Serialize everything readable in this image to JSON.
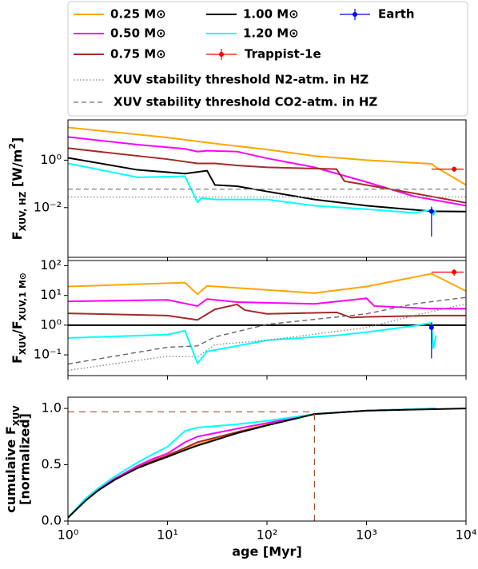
{
  "chart_data": [
    {
      "type": "line",
      "ylog": true,
      "xlog": true,
      "xlim": [
        1,
        10000
      ],
      "ylim": [
        8e-05,
        50
      ],
      "yticks": [
        {
          "value": 1,
          "label": "10⁰"
        },
        {
          "value": 0.01,
          "label": "10⁻²"
        }
      ],
      "y_label": [
        "F",
        "XUV, HZ",
        " [W/m",
        "2",
        "]"
      ],
      "series": [
        {
          "name": "0.25 M⊙",
          "color": "#ffa500",
          "style": "solid",
          "x": [
            1,
            3,
            10,
            30,
            100,
            300,
            1000,
            4500,
            5000,
            10000
          ],
          "values": [
            24,
            15,
            9,
            5,
            2.8,
            1.5,
            1.0,
            0.7,
            0.5,
            0.09
          ]
        },
        {
          "name": "0.50 M⊙",
          "color": "#ff00ff",
          "style": "solid",
          "x": [
            1,
            5,
            15,
            20,
            25,
            50,
            100,
            300,
            1000,
            3000,
            10000
          ],
          "values": [
            9.5,
            4.5,
            3,
            2.3,
            2.5,
            2.3,
            1.2,
            0.5,
            0.12,
            0.03,
            0.012
          ]
        },
        {
          "name": "0.75 M⊙",
          "color": "#a52a2a",
          "style": "solid",
          "x": [
            1,
            10,
            20,
            30,
            50,
            100,
            500,
            600,
            1000,
            3000,
            10000
          ],
          "values": [
            3.2,
            1.1,
            0.73,
            0.73,
            0.6,
            0.5,
            0.42,
            0.13,
            0.09,
            0.04,
            0.016
          ]
        },
        {
          "name": "1.00 M⊙",
          "color": "#000000",
          "style": "solid",
          "x": [
            1,
            5,
            10,
            15,
            25,
            30,
            50,
            100,
            300,
            1000,
            4500,
            10000
          ],
          "values": [
            1.26,
            0.39,
            0.31,
            0.27,
            0.36,
            0.09,
            0.08,
            0.048,
            0.022,
            0.012,
            0.007,
            0.0068
          ]
        },
        {
          "name": "1.20 M⊙",
          "color": "#00ffff",
          "style": "solid",
          "x": [
            1,
            5,
            10,
            15,
            20,
            22,
            30,
            100,
            300,
            1000,
            3000,
            4500,
            4700,
            5000
          ],
          "values": [
            0.73,
            0.19,
            0.2,
            0.21,
            0.017,
            0.025,
            0.022,
            0.022,
            0.012,
            0.0086,
            0.006,
            0.008,
            0.005,
            0.008
          ]
        },
        {
          "name": "XUV stability threshold N2-atm. in HZ",
          "color": "#999999",
          "style": "dotted",
          "x": [
            1,
            10000
          ],
          "values": [
            0.028,
            0.028
          ]
        },
        {
          "name": "XUV stability threshold CO2-atm. in HZ",
          "color": "#888888",
          "style": "dashed",
          "x": [
            1,
            10000
          ],
          "values": [
            0.06,
            0.06
          ]
        }
      ],
      "points": [
        {
          "name": "Trappist-1e",
          "color": "#ff0000",
          "x": 7600,
          "value": 0.42,
          "xerr": [
            3100,
            1900
          ],
          "yerr": [
            0.1,
            0.1
          ]
        },
        {
          "name": "Earth",
          "color": "#0000ff",
          "x": 4500,
          "value": 0.007,
          "xerr": [
            0,
            0
          ],
          "yerr": [
            0.0064,
            0.004
          ]
        }
      ]
    },
    {
      "type": "line",
      "ylog": true,
      "xlog": true,
      "xlim": [
        1,
        10000
      ],
      "ylim": [
        0.02,
        150
      ],
      "yticks": [
        {
          "value": 100,
          "label": "10²"
        },
        {
          "value": 10,
          "label": "10¹"
        },
        {
          "value": 1,
          "label": "10⁰"
        },
        {
          "value": 0.1,
          "label": "10⁻¹"
        }
      ],
      "y_label": [
        "F",
        "XUV",
        "/F",
        "XUV,1 M",
        "⊙"
      ],
      "series": [
        {
          "color": "#ffa500",
          "style": "solid",
          "x": [
            1,
            15,
            20,
            25,
            50,
            300,
            1000,
            4500,
            10000
          ],
          "values": [
            20,
            27,
            11,
            21,
            18,
            12,
            20,
            54,
            14
          ]
        },
        {
          "color": "#ff00ff",
          "style": "solid",
          "x": [
            1,
            10,
            20,
            25,
            50,
            300,
            1000,
            1200,
            4500,
            10000
          ],
          "values": [
            6.3,
            7.1,
            4.4,
            7.6,
            6,
            5.2,
            8,
            4.4,
            3.6,
            3.6
          ]
        },
        {
          "color": "#a52a2a",
          "style": "solid",
          "x": [
            1,
            10,
            20,
            30,
            50,
            60,
            100,
            500,
            700,
            1000,
            4500,
            10000
          ],
          "values": [
            2.5,
            2.1,
            1.5,
            3.4,
            5,
            3.2,
            2.4,
            2.7,
            1.8,
            1.9,
            2.1,
            2.1
          ]
        },
        {
          "color": "#000000",
          "style": "solid",
          "x": [
            1,
            10000
          ],
          "values": [
            1,
            1
          ]
        },
        {
          "color": "#00ffff",
          "style": "solid",
          "x": [
            1,
            10,
            15,
            20,
            25,
            50,
            100,
            500,
            1000,
            3000,
            4500,
            4700,
            5000
          ],
          "values": [
            0.37,
            0.48,
            0.65,
            0.052,
            0.13,
            0.2,
            0.31,
            0.45,
            0.58,
            0.94,
            1.2,
            0.16,
            0.45
          ]
        },
        {
          "color": "#666666",
          "style": "dashed",
          "x": [
            1,
            10,
            20,
            30,
            100,
            1000,
            3000,
            10000
          ],
          "values": [
            0.049,
            0.18,
            0.2,
            0.4,
            1.06,
            2.4,
            5.2,
            8.6
          ]
        },
        {
          "color": "#888888",
          "style": "dotted",
          "x": [
            1,
            10,
            20,
            30,
            100,
            1000,
            3000,
            10000
          ],
          "values": [
            0.03,
            0.09,
            0.085,
            0.22,
            0.31,
            0.83,
            2.1,
            5.2
          ]
        }
      ],
      "points": [
        {
          "color": "#ff0000",
          "x": 7600,
          "value": 61,
          "xerr": [
            3100,
            1900
          ],
          "yerr": [
            15,
            15
          ]
        },
        {
          "color": "#0000ff",
          "x": 4500,
          "value": 0.83,
          "xerr": [
            0,
            0
          ],
          "yerr": [
            0.754,
            0.37
          ]
        }
      ]
    },
    {
      "type": "line",
      "ylog": false,
      "xlog": true,
      "xlim": [
        1,
        10000
      ],
      "ylim": [
        0,
        1.1
      ],
      "xticks": [
        {
          "value": 1,
          "label": "10⁰"
        },
        {
          "value": 10,
          "label": "10¹"
        },
        {
          "value": 100,
          "label": "10²"
        },
        {
          "value": 1000,
          "label": "10³"
        },
        {
          "value": 10000,
          "label": "10⁴"
        }
      ],
      "yticks": [
        {
          "value": 0,
          "label": "0.0"
        },
        0.5,
        {
          "value": 1,
          "label": "1.0"
        }
      ],
      "y_label": [
        "cumulaive F",
        "XUV"
      ],
      "y_label2": "[normalized]",
      "x_label": "age [Myr]",
      "ref_x": 300,
      "ref_y": 0.97,
      "ref_color": "#a0522d",
      "series": [
        {
          "color": "#ffa500",
          "style": "solid",
          "x": [
            1,
            1.5,
            2,
            3,
            5,
            7,
            10,
            20,
            50,
            100,
            300,
            1000,
            5000
          ],
          "values": [
            0.03,
            0.19,
            0.28,
            0.38,
            0.48,
            0.54,
            0.59,
            0.68,
            0.79,
            0.86,
            0.95,
            0.98,
            1.0
          ]
        },
        {
          "color": "#a52a2a",
          "style": "solid",
          "x": [
            1,
            1.5,
            2,
            3,
            5,
            7,
            10,
            20,
            50,
            100,
            300,
            1000,
            5000
          ],
          "values": [
            0.03,
            0.19,
            0.28,
            0.38,
            0.48,
            0.53,
            0.58,
            0.7,
            0.79,
            0.85,
            0.95,
            0.98,
            1.0
          ]
        },
        {
          "color": "#ff00ff",
          "style": "solid",
          "x": [
            1,
            1.5,
            2,
            3,
            5,
            7,
            10,
            15,
            20,
            50,
            100,
            300,
            1000,
            5000
          ],
          "values": [
            0.03,
            0.19,
            0.28,
            0.38,
            0.49,
            0.55,
            0.6,
            0.7,
            0.75,
            0.82,
            0.87,
            0.95,
            0.98,
            1.0
          ]
        },
        {
          "color": "#00ffff",
          "style": "solid",
          "x": [
            1,
            1.5,
            2,
            3,
            5,
            7,
            10,
            15,
            20,
            50,
            100,
            300,
            1000,
            5000
          ],
          "values": [
            0.03,
            0.2,
            0.29,
            0.4,
            0.52,
            0.59,
            0.66,
            0.8,
            0.83,
            0.86,
            0.89,
            0.95,
            0.98,
            1.0
          ]
        },
        {
          "color": "#000000",
          "style": "solid",
          "x": [
            1,
            1.5,
            2,
            3,
            5,
            7,
            10,
            15,
            20,
            50,
            100,
            300,
            1000,
            10000
          ],
          "values": [
            0.03,
            0.18,
            0.27,
            0.37,
            0.47,
            0.52,
            0.57,
            0.63,
            0.67,
            0.78,
            0.85,
            0.95,
            0.98,
            1.0
          ]
        }
      ]
    }
  ]
}
